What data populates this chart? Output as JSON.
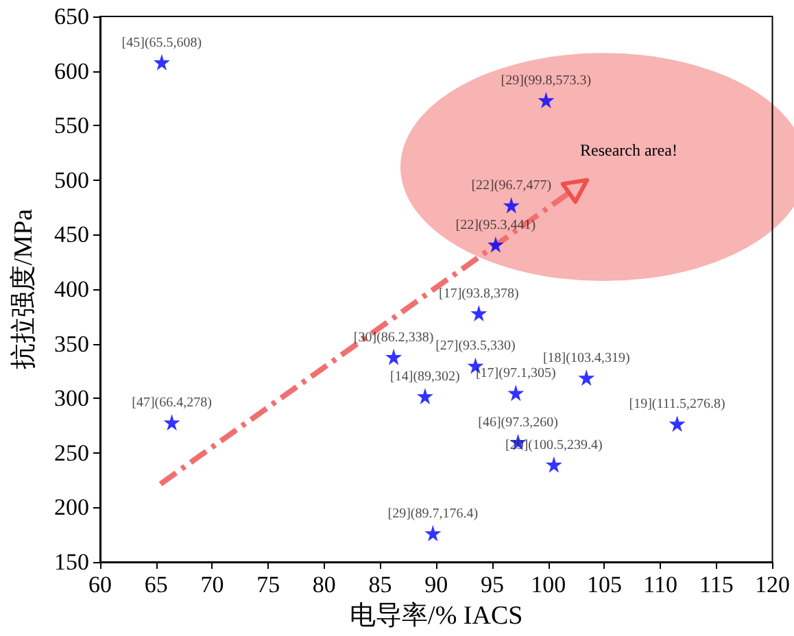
{
  "chart_data": {
    "type": "scatter",
    "xlabel": "电导率/% IACS",
    "ylabel": "抗拉强度/MPa",
    "x": [
      65.5,
      99.8,
      96.7,
      95.3,
      93.8,
      86.2,
      93.5,
      103.4,
      89,
      97.1,
      66.4,
      111.5,
      97.3,
      100.5,
      89.7
    ],
    "values": [
      608,
      573.3,
      477,
      441,
      378,
      338,
      330,
      319,
      302,
      305,
      278,
      276.8,
      260,
      239.4,
      176.4
    ],
    "value_labels": [
      "[45](65.5,608)",
      "[29](99.8,573.3)",
      "[22](96.7,477)",
      "[22](95.3,441)",
      "[17](93.8,378)",
      "[30](86.2,338)",
      "[27](93.5,330)",
      "[18](103.4,319)",
      "[14](89,302)",
      "[17](97.1,305)",
      "[47](66.4,278)",
      "[19](111.5,276.8)",
      "[46](97.3,260)",
      "[29](100.5,239.4)",
      "[29](89.7,176.4)"
    ],
    "color": "#0000ff",
    "marker": "star",
    "xlim": [
      60,
      120
    ],
    "xticks": [
      60,
      65,
      70,
      75,
      80,
      85,
      90,
      95,
      100,
      105,
      110,
      115,
      120
    ],
    "ylim": [
      150,
      650
    ],
    "yticks": [
      150,
      200,
      250,
      300,
      350,
      400,
      450,
      500,
      550,
      600,
      650
    ],
    "grid": false,
    "annotations": [
      "Research area!"
    ]
  }
}
